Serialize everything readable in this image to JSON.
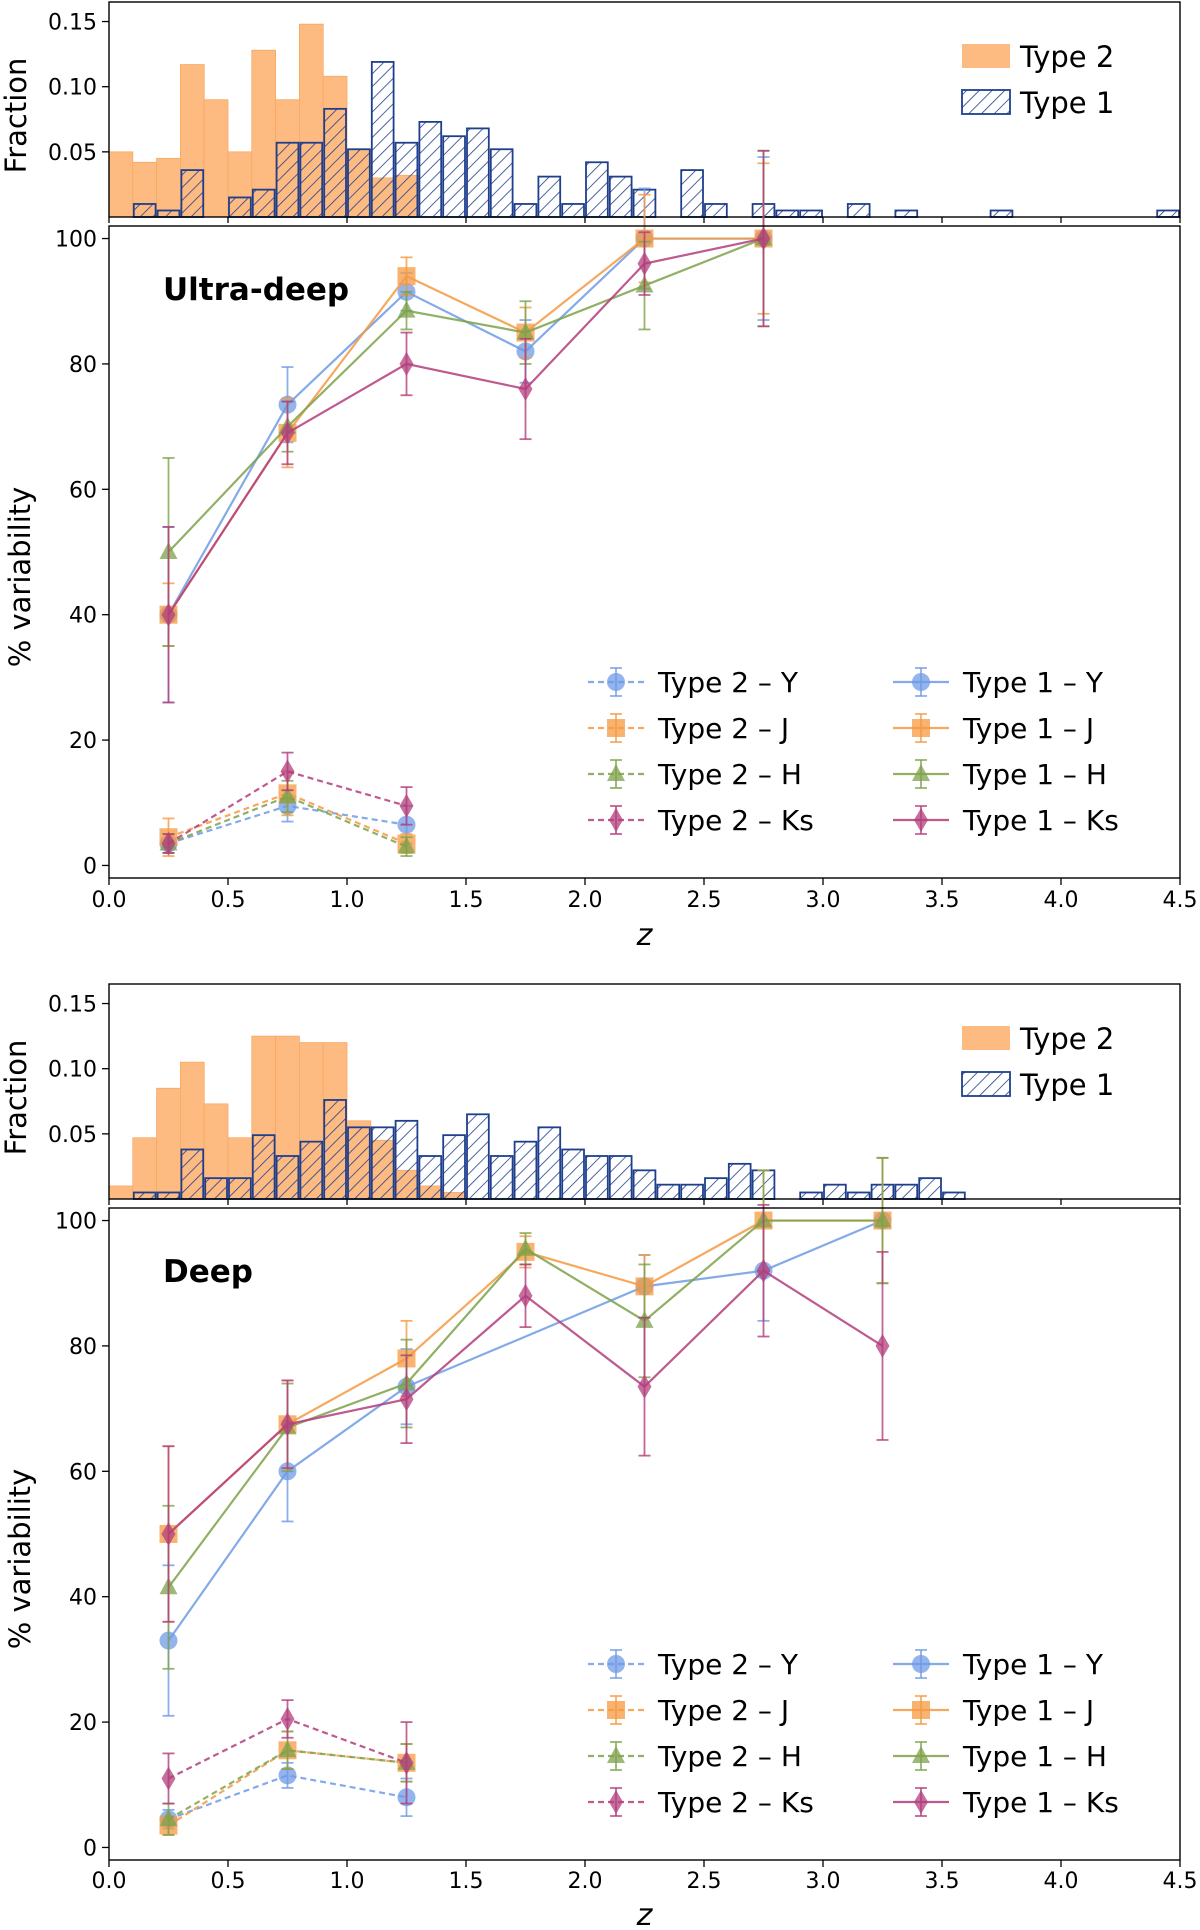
{
  "colors": {
    "Y": "#6f9be6",
    "J": "#f59a42",
    "H": "#7ea24a",
    "Ks": "#b33d7c",
    "type2_hist": "#fdbb82",
    "type1_hist": "#1f3f8c"
  },
  "chart_data": [
    {
      "panel": "ultra-deep",
      "histogram": {
        "type": "bar",
        "ylabel": "Fraction",
        "yticks": [
          "0.05",
          "0.10",
          "0.15"
        ],
        "ylim": [
          0,
          0.165
        ],
        "xlim": [
          0,
          4.5
        ],
        "bin_width": 0.1,
        "legend": [
          "Type 2",
          "Type 1"
        ],
        "series": [
          {
            "name": "Type 2",
            "bins": [
              {
                "x": 0.0,
                "y": 0.05
              },
              {
                "x": 0.1,
                "y": 0.042
              },
              {
                "x": 0.2,
                "y": 0.045
              },
              {
                "x": 0.3,
                "y": 0.117
              },
              {
                "x": 0.4,
                "y": 0.09
              },
              {
                "x": 0.5,
                "y": 0.05
              },
              {
                "x": 0.6,
                "y": 0.128
              },
              {
                "x": 0.7,
                "y": 0.09
              },
              {
                "x": 0.8,
                "y": 0.148
              },
              {
                "x": 0.9,
                "y": 0.108
              },
              {
                "x": 1.0,
                "y": 0.052
              },
              {
                "x": 1.1,
                "y": 0.03
              },
              {
                "x": 1.2,
                "y": 0.032
              }
            ]
          },
          {
            "name": "Type 1",
            "bins": [
              {
                "x": 0.1,
                "y": 0.01
              },
              {
                "x": 0.2,
                "y": 0.005
              },
              {
                "x": 0.3,
                "y": 0.036
              },
              {
                "x": 0.5,
                "y": 0.015
              },
              {
                "x": 0.6,
                "y": 0.021
              },
              {
                "x": 0.7,
                "y": 0.057
              },
              {
                "x": 0.8,
                "y": 0.057
              },
              {
                "x": 0.9,
                "y": 0.083
              },
              {
                "x": 1.0,
                "y": 0.052
              },
              {
                "x": 1.1,
                "y": 0.119
              },
              {
                "x": 1.2,
                "y": 0.057
              },
              {
                "x": 1.3,
                "y": 0.073
              },
              {
                "x": 1.4,
                "y": 0.062
              },
              {
                "x": 1.5,
                "y": 0.068
              },
              {
                "x": 1.6,
                "y": 0.052
              },
              {
                "x": 1.7,
                "y": 0.01
              },
              {
                "x": 1.8,
                "y": 0.031
              },
              {
                "x": 1.9,
                "y": 0.01
              },
              {
                "x": 2.0,
                "y": 0.042
              },
              {
                "x": 2.1,
                "y": 0.031
              },
              {
                "x": 2.2,
                "y": 0.021
              },
              {
                "x": 2.4,
                "y": 0.036
              },
              {
                "x": 2.5,
                "y": 0.01
              },
              {
                "x": 2.7,
                "y": 0.01
              },
              {
                "x": 2.8,
                "y": 0.005
              },
              {
                "x": 2.9,
                "y": 0.005
              },
              {
                "x": 3.1,
                "y": 0.01
              },
              {
                "x": 3.3,
                "y": 0.005
              },
              {
                "x": 3.7,
                "y": 0.005
              },
              {
                "x": 4.4,
                "y": 0.005
              }
            ]
          }
        ]
      },
      "main": {
        "type": "line",
        "annotation": "Ultra-deep",
        "xlabel": "z",
        "ylabel": "% variability",
        "xlim": [
          0,
          4.5
        ],
        "ylim": [
          -2,
          102
        ],
        "xticks": [
          "0.0",
          "0.5",
          "1.0",
          "1.5",
          "2.0",
          "2.5",
          "3.0",
          "3.5",
          "4.0",
          "4.5"
        ],
        "yticks": [
          "0",
          "20",
          "40",
          "60",
          "80",
          "100"
        ],
        "series": [
          {
            "name": "Type 2 – Y",
            "band": "Y",
            "group": "type2",
            "x": [
              0.25,
              0.75,
              1.25
            ],
            "y": [
              3.5,
              9.5,
              6.5
            ],
            "err": [
              1.5,
              2.5,
              3.0
            ]
          },
          {
            "name": "Type 2 – J",
            "band": "J",
            "group": "type2",
            "x": [
              0.25,
              0.75,
              1.25
            ],
            "y": [
              4.5,
              11.5,
              3.5
            ],
            "err": [
              3.0,
              3.5,
              1.5
            ]
          },
          {
            "name": "Type 2 – H",
            "band": "H",
            "group": "type2",
            "x": [
              0.25,
              0.75,
              1.25
            ],
            "y": [
              3.5,
              11.0,
              3.0
            ],
            "err": [
              1.5,
              2.5,
              1.5
            ]
          },
          {
            "name": "Type 2 – Ks",
            "band": "Ks",
            "group": "type2",
            "x": [
              0.25,
              0.75,
              1.25
            ],
            "y": [
              3.5,
              15.0,
              9.5
            ],
            "err": [
              1.5,
              3.0,
              3.0
            ]
          },
          {
            "name": "Type 1 – Y",
            "band": "Y",
            "group": "type1",
            "x": [
              0.25,
              0.75,
              1.25,
              1.75,
              2.25,
              2.75
            ],
            "y": [
              40,
              73.5,
              91.5,
              82,
              100,
              100
            ],
            "err": [
              14,
              6,
              3,
              5,
              8,
              13
            ]
          },
          {
            "name": "Type 1 – J",
            "band": "J",
            "group": "type1",
            "x": [
              0.25,
              0.75,
              1.25,
              1.75,
              2.25,
              2.75
            ],
            "y": [
              40,
              69,
              94,
              85,
              100,
              100
            ],
            "err": [
              5,
              5.5,
              3,
              4,
              7,
              12
            ]
          },
          {
            "name": "Type 1 – H",
            "band": "H",
            "group": "type1",
            "x": [
              0.25,
              0.75,
              1.25,
              1.75,
              2.25,
              2.75
            ],
            "y": [
              50,
              70,
              88.5,
              85,
              92.5,
              100
            ],
            "err": [
              15,
              4,
              3,
              5,
              7,
              14
            ]
          },
          {
            "name": "Type 1 – Ks",
            "band": "Ks",
            "group": "type1",
            "x": [
              0.25,
              0.75,
              1.25,
              1.75,
              2.25,
              2.75
            ],
            "y": [
              40,
              69,
              80,
              76,
              96,
              100
            ],
            "err": [
              14,
              5,
              5,
              8,
              5,
              14
            ]
          }
        ]
      }
    },
    {
      "panel": "deep",
      "histogram": {
        "type": "bar",
        "ylabel": "Fraction",
        "yticks": [
          "0.05",
          "0.10",
          "0.15"
        ],
        "ylim": [
          0,
          0.165
        ],
        "xlim": [
          0,
          4.5
        ],
        "bin_width": 0.1,
        "legend": [
          "Type 2",
          "Type 1"
        ],
        "series": [
          {
            "name": "Type 2",
            "bins": [
              {
                "x": 0.0,
                "y": 0.01
              },
              {
                "x": 0.1,
                "y": 0.047
              },
              {
                "x": 0.2,
                "y": 0.085
              },
              {
                "x": 0.3,
                "y": 0.105
              },
              {
                "x": 0.4,
                "y": 0.073
              },
              {
                "x": 0.5,
                "y": 0.047
              },
              {
                "x": 0.6,
                "y": 0.125
              },
              {
                "x": 0.7,
                "y": 0.125
              },
              {
                "x": 0.8,
                "y": 0.12
              },
              {
                "x": 0.9,
                "y": 0.12
              },
              {
                "x": 1.0,
                "y": 0.06
              },
              {
                "x": 1.1,
                "y": 0.045
              },
              {
                "x": 1.2,
                "y": 0.022
              },
              {
                "x": 1.3,
                "y": 0.01
              },
              {
                "x": 1.4,
                "y": 0.005
              }
            ]
          },
          {
            "name": "Type 1",
            "bins": [
              {
                "x": 0.1,
                "y": 0.005
              },
              {
                "x": 0.2,
                "y": 0.005
              },
              {
                "x": 0.3,
                "y": 0.038
              },
              {
                "x": 0.4,
                "y": 0.016
              },
              {
                "x": 0.5,
                "y": 0.016
              },
              {
                "x": 0.6,
                "y": 0.049
              },
              {
                "x": 0.7,
                "y": 0.033
              },
              {
                "x": 0.8,
                "y": 0.044
              },
              {
                "x": 0.9,
                "y": 0.076
              },
              {
                "x": 1.0,
                "y": 0.055
              },
              {
                "x": 1.1,
                "y": 0.055
              },
              {
                "x": 1.2,
                "y": 0.06
              },
              {
                "x": 1.3,
                "y": 0.033
              },
              {
                "x": 1.4,
                "y": 0.049
              },
              {
                "x": 1.5,
                "y": 0.065
              },
              {
                "x": 1.6,
                "y": 0.033
              },
              {
                "x": 1.7,
                "y": 0.044
              },
              {
                "x": 1.8,
                "y": 0.055
              },
              {
                "x": 1.9,
                "y": 0.038
              },
              {
                "x": 2.0,
                "y": 0.033
              },
              {
                "x": 2.1,
                "y": 0.033
              },
              {
                "x": 2.2,
                "y": 0.022
              },
              {
                "x": 2.3,
                "y": 0.011
              },
              {
                "x": 2.4,
                "y": 0.011
              },
              {
                "x": 2.5,
                "y": 0.016
              },
              {
                "x": 2.6,
                "y": 0.027
              },
              {
                "x": 2.7,
                "y": 0.022
              },
              {
                "x": 2.9,
                "y": 0.005
              },
              {
                "x": 3.0,
                "y": 0.011
              },
              {
                "x": 3.1,
                "y": 0.005
              },
              {
                "x": 3.2,
                "y": 0.011
              },
              {
                "x": 3.3,
                "y": 0.011
              },
              {
                "x": 3.4,
                "y": 0.016
              },
              {
                "x": 3.5,
                "y": 0.005
              }
            ]
          }
        ]
      },
      "main": {
        "type": "line",
        "annotation": "Deep",
        "xlabel": "z",
        "ylabel": "% variability",
        "xlim": [
          0,
          4.5
        ],
        "ylim": [
          -2,
          102
        ],
        "xticks": [
          "0.0",
          "0.5",
          "1.0",
          "1.5",
          "2.0",
          "2.5",
          "3.0",
          "3.5",
          "4.0",
          "4.5"
        ],
        "yticks": [
          "0",
          "20",
          "40",
          "60",
          "80",
          "100"
        ],
        "series": [
          {
            "name": "Type 2 – Y",
            "band": "Y",
            "group": "type2",
            "x": [
              0.25,
              0.75,
              1.25
            ],
            "y": [
              4.5,
              11.5,
              8.0
            ],
            "err": [
              1.5,
              2.0,
              3.0
            ]
          },
          {
            "name": "Type 2 – J",
            "band": "J",
            "group": "type2",
            "x": [
              0.25,
              0.75,
              1.25
            ],
            "y": [
              3.5,
              15.5,
              13.5
            ],
            "err": [
              1.5,
              3.0,
              3.0
            ]
          },
          {
            "name": "Type 2 – H",
            "band": "H",
            "group": "type2",
            "x": [
              0.25,
              0.75,
              1.25
            ],
            "y": [
              4.5,
              15.5,
              13.5
            ],
            "err": [
              2.5,
              3.0,
              3.0
            ]
          },
          {
            "name": "Type 2 – Ks",
            "band": "Ks",
            "group": "type2",
            "x": [
              0.25,
              0.75,
              1.25
            ],
            "y": [
              11.0,
              20.5,
              13.5
            ],
            "err": [
              4.0,
              3.0,
              6.5
            ]
          },
          {
            "name": "Type 1 – Y",
            "band": "Y",
            "group": "type1",
            "x": [
              0.25,
              0.75,
              1.25,
              2.25,
              2.75,
              3.25
            ],
            "y": [
              33,
              60,
              73.5,
              89.5,
              92,
              100
            ],
            "err": [
              12,
              8,
              6,
              5,
              8,
              10
            ]
          },
          {
            "name": "Type 1 – J",
            "band": "J",
            "group": "type1",
            "x": [
              0.25,
              0.75,
              1.25,
              1.75,
              2.25,
              2.75,
              3.25
            ],
            "y": [
              50,
              67.5,
              78,
              95,
              89.5,
              100,
              100
            ],
            "err": [
              14,
              7,
              6,
              2.5,
              5,
              8,
              10
            ]
          },
          {
            "name": "Type 1 – H",
            "band": "H",
            "group": "type1",
            "x": [
              0.25,
              0.75,
              1.25,
              1.75,
              2.25,
              2.75,
              3.25
            ],
            "y": [
              41.5,
              67,
              74,
              95.5,
              84,
              100,
              100
            ],
            "err": [
              13,
              7,
              7,
              2.5,
              9,
              8,
              10
            ]
          },
          {
            "name": "Type 1 – Ks",
            "band": "Ks",
            "group": "type1",
            "x": [
              0.25,
              0.75,
              1.25,
              1.75,
              2.25,
              2.75,
              3.25
            ],
            "y": [
              50,
              67.5,
              71.5,
              88,
              73.5,
              92,
              80
            ],
            "err": [
              14,
              7,
              7,
              5,
              11,
              10.5,
              15
            ]
          }
        ]
      }
    }
  ]
}
